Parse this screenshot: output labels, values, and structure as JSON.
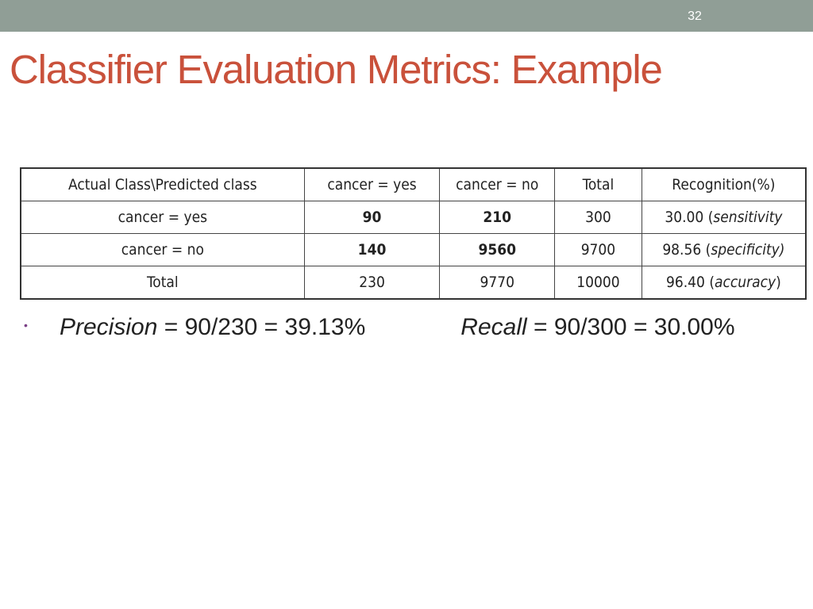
{
  "slide": {
    "number": "32",
    "title": "Classifier Evaluation Metrics: Example"
  },
  "table": {
    "header": [
      "Actual Class\\Predicted class",
      "cancer = yes",
      "cancer = no",
      "Total",
      "Recognition(%)"
    ],
    "rows": [
      {
        "label": "cancer = yes",
        "c1": "90",
        "c2": "210",
        "total": "300",
        "recog_value": "30.00 (",
        "recog_term": "sensitivity",
        "recog_close": ""
      },
      {
        "label": "cancer = no",
        "c1": "140",
        "c2": "9560",
        "total": "9700",
        "recog_value": "98.56 (",
        "recog_term": "specificity)",
        "recog_close": ""
      },
      {
        "label": "Total",
        "c1": "230",
        "c2": "9770",
        "total": "10000",
        "recog_value": "96.40 (",
        "recog_term": "accuracy",
        "recog_close": ")"
      }
    ]
  },
  "bullet": {
    "precision_term": "Precision",
    "precision_formula": " = 90/230 = 39.13%",
    "recall_term": "Recall",
    "recall_formula": " = 90/300 = 30.00%"
  },
  "colors": {
    "top_bar": "#909e96",
    "title": "#c9513b",
    "bullet": "#7a3f85"
  }
}
